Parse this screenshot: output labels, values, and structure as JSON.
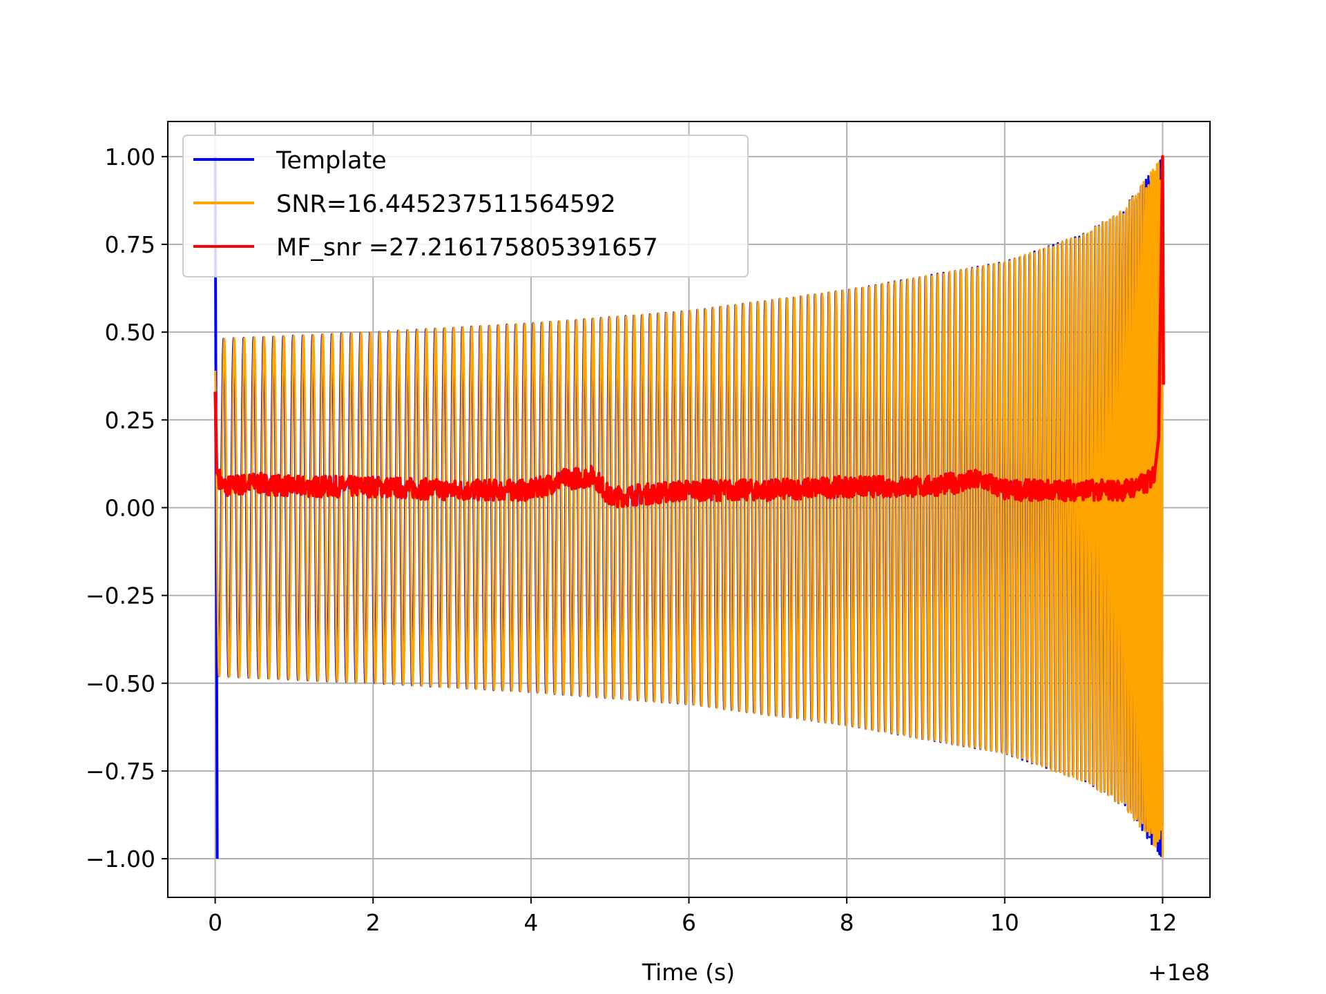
{
  "chart_data": {
    "type": "line",
    "title": "",
    "xlabel": "Time (s)",
    "ylabel": "",
    "x_offset_label": "+1e8",
    "xlim": [
      -0.6,
      12.6
    ],
    "ylim": [
      -1.11,
      1.1
    ],
    "xticks": [
      0,
      2,
      4,
      6,
      8,
      10,
      12
    ],
    "xtick_labels": [
      "0",
      "2",
      "4",
      "6",
      "8",
      "10",
      "12"
    ],
    "yticks": [
      1.0,
      0.75,
      0.5,
      0.25,
      0.0,
      -0.25,
      -0.5,
      -0.75,
      -1.0
    ],
    "ytick_labels": [
      "1.00",
      "0.75",
      "0.50",
      "0.25",
      "0.00",
      "−0.25",
      "−0.50",
      "−0.75",
      "−1.00"
    ],
    "grid": true,
    "legend_position": "top-left",
    "series": [
      {
        "name": "Template",
        "color": "#0000ff",
        "kind": "chirp",
        "t_start": 0.0,
        "t_end": 12.0,
        "start_spike": [
          1.0,
          -1.0
        ],
        "envelope": [
          [
            0.0,
            0.48
          ],
          [
            2.0,
            0.5
          ],
          [
            4.0,
            0.525
          ],
          [
            6.0,
            0.56
          ],
          [
            8.0,
            0.62
          ],
          [
            10.0,
            0.7
          ],
          [
            11.0,
            0.78
          ],
          [
            11.5,
            0.85
          ],
          [
            12.0,
            1.0
          ]
        ]
      },
      {
        "name": "SNR=16.445237511564592",
        "color": "#ffa500",
        "kind": "chirp",
        "t_start": 0.0,
        "t_end": 12.0,
        "envelope": [
          [
            0.0,
            0.48
          ],
          [
            2.0,
            0.5
          ],
          [
            4.0,
            0.525
          ],
          [
            6.0,
            0.56
          ],
          [
            8.0,
            0.62
          ],
          [
            10.0,
            0.7
          ],
          [
            11.0,
            0.78
          ],
          [
            11.5,
            0.85
          ],
          [
            12.0,
            1.0
          ]
        ]
      },
      {
        "name": "MF_snr =27.216175805391657",
        "color": "#ff0000",
        "kind": "noisy",
        "x": [
          0.0,
          0.02,
          0.1,
          0.5,
          1.0,
          2.0,
          3.0,
          4.0,
          4.4,
          4.8,
          5.0,
          6.0,
          7.0,
          8.0,
          9.0,
          9.7,
          10.0,
          11.0,
          11.5,
          11.8,
          11.9,
          11.95,
          12.0,
          12.01
        ],
        "y": [
          0.33,
          0.1,
          0.06,
          0.07,
          0.06,
          0.06,
          0.05,
          0.05,
          0.08,
          0.09,
          0.03,
          0.05,
          0.05,
          0.06,
          0.06,
          0.08,
          0.05,
          0.05,
          0.05,
          0.07,
          0.1,
          0.2,
          1.0,
          0.35
        ],
        "noise_amp": 0.03
      }
    ]
  }
}
